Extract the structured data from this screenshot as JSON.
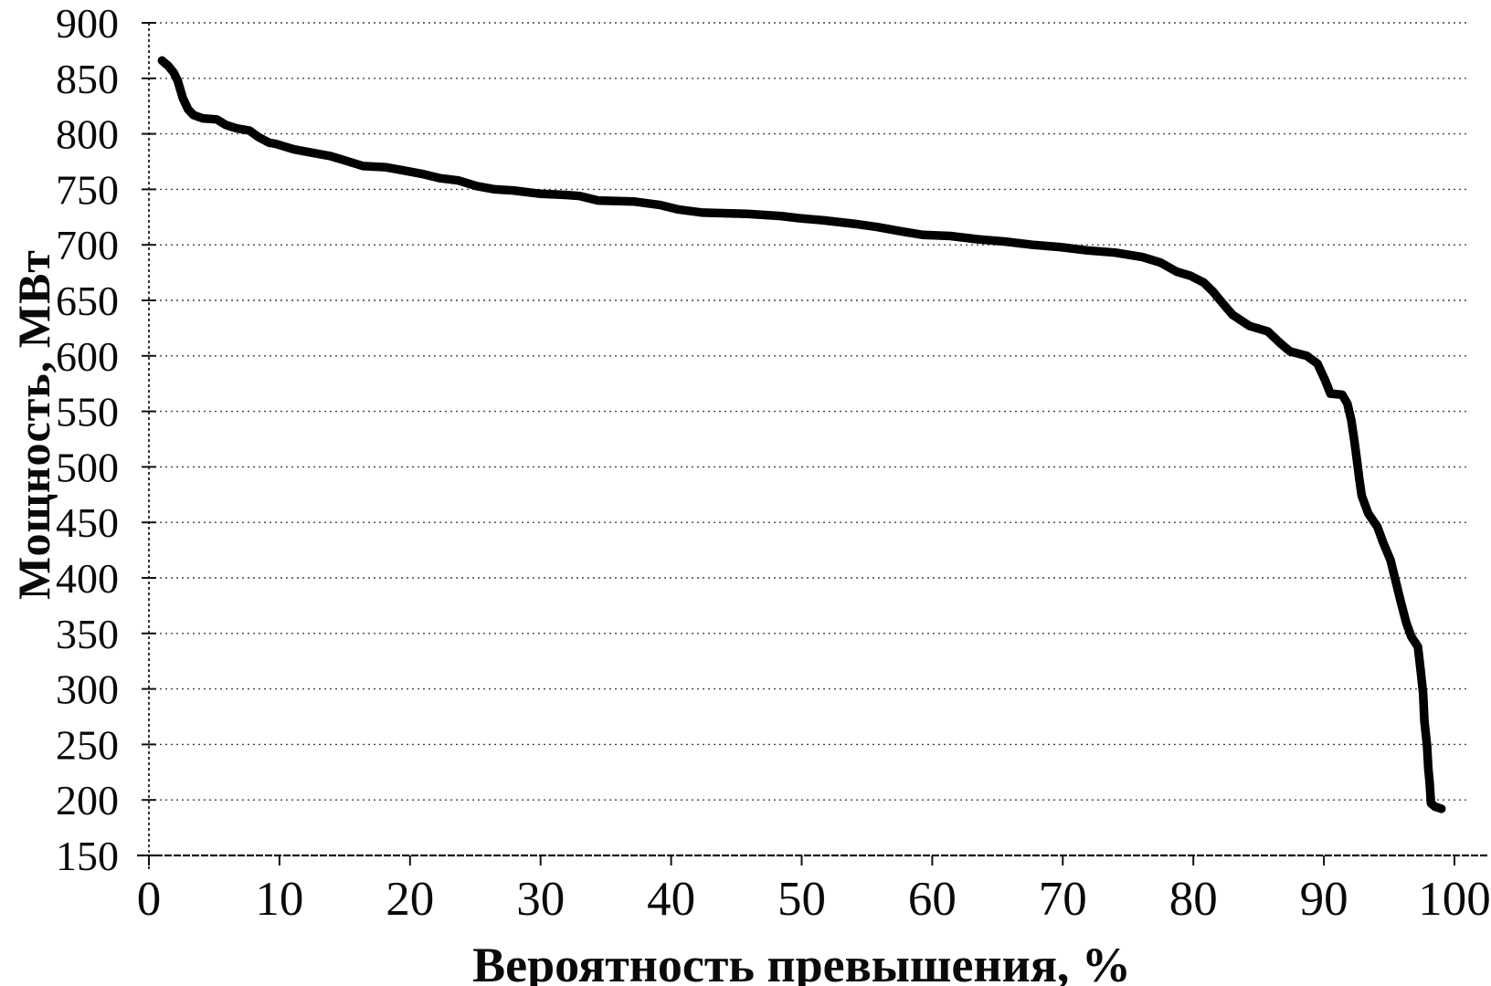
{
  "chart_data": {
    "type": "line",
    "xlabel": "Вероятность превышения, %",
    "ylabel": "Мощность, МВт",
    "xlim": [
      0,
      100
    ],
    "ylim": [
      150,
      900
    ],
    "x_ticks": [
      0,
      10,
      20,
      30,
      40,
      50,
      60,
      70,
      80,
      90,
      100
    ],
    "y_ticks": [
      900,
      850,
      800,
      750,
      700,
      650,
      600,
      550,
      500,
      450,
      400,
      350,
      300,
      250,
      200,
      150
    ],
    "grid": "horizontal dashed gridlines at every 50 MW",
    "legend": "none",
    "background_color": "#ffffff",
    "line_color": "#000000",
    "grid_color": "#2a2a2a",
    "axis_color": "#111111",
    "series": [
      {
        "points": [
          [
            1.0,
            866
          ],
          [
            1.5,
            861
          ],
          [
            1.9,
            855
          ],
          [
            2.2,
            848
          ],
          [
            2.4,
            840
          ],
          [
            2.6,
            832
          ],
          [
            3.0,
            822
          ],
          [
            3.4,
            817
          ],
          [
            4.1,
            814
          ],
          [
            5.2,
            813
          ],
          [
            5.9,
            808
          ],
          [
            6.7,
            805
          ],
          [
            7.7,
            803
          ],
          [
            8.4,
            797
          ],
          [
            9.2,
            792
          ],
          [
            9.7,
            791
          ],
          [
            11.1,
            786
          ],
          [
            12.5,
            783
          ],
          [
            13.9,
            780
          ],
          [
            15.3,
            775
          ],
          [
            16.4,
            771
          ],
          [
            18.1,
            770
          ],
          [
            19.5,
            767
          ],
          [
            20.9,
            764
          ],
          [
            22.3,
            760
          ],
          [
            23.7,
            758
          ],
          [
            25.1,
            753
          ],
          [
            26.5,
            750
          ],
          [
            27.9,
            749
          ],
          [
            30.0,
            746
          ],
          [
            31.9,
            745
          ],
          [
            33.0,
            744
          ],
          [
            34.4,
            740
          ],
          [
            37.2,
            739
          ],
          [
            39.1,
            736
          ],
          [
            40.5,
            732
          ],
          [
            42.4,
            729
          ],
          [
            45.8,
            728
          ],
          [
            48.4,
            726
          ],
          [
            49.8,
            724
          ],
          [
            51.7,
            722
          ],
          [
            54.0,
            719
          ],
          [
            55.8,
            716
          ],
          [
            57.7,
            712
          ],
          [
            59.3,
            709
          ],
          [
            61.4,
            708
          ],
          [
            63.5,
            705
          ],
          [
            65.6,
            703
          ],
          [
            67.7,
            700
          ],
          [
            69.8,
            698
          ],
          [
            71.9,
            695
          ],
          [
            74.0,
            693
          ],
          [
            76.1,
            689
          ],
          [
            77.5,
            684
          ],
          [
            78.7,
            676
          ],
          [
            79.8,
            672
          ],
          [
            80.8,
            666
          ],
          [
            81.5,
            658
          ],
          [
            82.2,
            648
          ],
          [
            83.0,
            637
          ],
          [
            84.3,
            627
          ],
          [
            85.7,
            622
          ],
          [
            86.7,
            611
          ],
          [
            87.4,
            604
          ],
          [
            88.7,
            600
          ],
          [
            89.5,
            593
          ],
          [
            90.1,
            578
          ],
          [
            90.5,
            566
          ],
          [
            91.4,
            565
          ],
          [
            91.8,
            557
          ],
          [
            92.1,
            542
          ],
          [
            92.3,
            526
          ],
          [
            92.5,
            509
          ],
          [
            92.7,
            490
          ],
          [
            92.9,
            474
          ],
          [
            93.4,
            458
          ],
          [
            94.1,
            446
          ],
          [
            94.5,
            433
          ],
          [
            95.1,
            416
          ],
          [
            95.5,
            397
          ],
          [
            95.9,
            378
          ],
          [
            96.3,
            360
          ],
          [
            96.7,
            347
          ],
          [
            97.2,
            338
          ],
          [
            97.4,
            318
          ],
          [
            97.6,
            296
          ],
          [
            97.7,
            271
          ],
          [
            97.9,
            249
          ],
          [
            98.0,
            228
          ],
          [
            98.1,
            216
          ],
          [
            98.2,
            197
          ],
          [
            98.5,
            194
          ],
          [
            99.0,
            192
          ]
        ]
      }
    ]
  }
}
